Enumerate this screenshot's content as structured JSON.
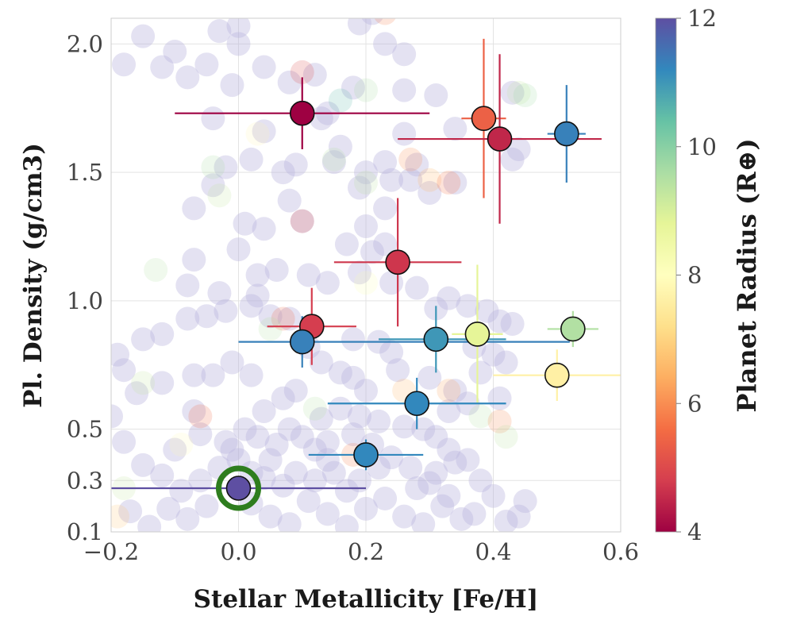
{
  "chart_data": {
    "type": "scatter",
    "xlabel": "Stellar Metallicity [Fe/H]",
    "ylabel": "Pl. Density (g/cm3)",
    "colorbar_label": "Planet Radius (R⊕)",
    "xlim": [
      -0.2,
      0.6
    ],
    "ylim": [
      0.1,
      2.1
    ],
    "x_ticks": [
      "−0.2",
      "0.0",
      "0.2",
      "0.4",
      "0.6"
    ],
    "y_ticks": [
      "0.1",
      "0.3",
      "0.5",
      "1.0",
      "1.5",
      "2.0"
    ],
    "colorbar_range": [
      4,
      12
    ],
    "colorbar_ticks": [
      "4",
      "6",
      "8",
      "10",
      "12"
    ],
    "colormap": [
      "#9e0142",
      "#d53e4f",
      "#f46d43",
      "#fdae61",
      "#fee08b",
      "#ffffbf",
      "#e6f598",
      "#abdda4",
      "#66c2a5",
      "#3288bd",
      "#5e4fa2"
    ],
    "grid": true,
    "highlighted_point": {
      "x": 0.0,
      "y": 0.27,
      "radius": 12,
      "ring_color": "#2e7d1e"
    },
    "points": [
      {
        "x": 0.1,
        "y": 1.73,
        "xerr": [
          0.2,
          0.2
        ],
        "yerr": [
          0.14,
          0.14
        ],
        "radius": 4.0
      },
      {
        "x": 0.385,
        "y": 1.71,
        "xerr": [
          0.035,
          0.035
        ],
        "yerr": [
          0.31,
          0.31
        ],
        "radius": 5.4
      },
      {
        "x": 0.41,
        "y": 1.63,
        "xerr": [
          0.16,
          0.16
        ],
        "yerr": [
          0.33,
          0.33
        ],
        "radius": 4.5
      },
      {
        "x": 0.515,
        "y": 1.65,
        "xerr": [
          0.03,
          0.03
        ],
        "yerr": [
          0.19,
          0.19
        ],
        "radius": 11.3
      },
      {
        "x": 0.25,
        "y": 1.15,
        "xerr": [
          0.1,
          0.1
        ],
        "yerr": [
          0.25,
          0.25
        ],
        "radius": 4.7
      },
      {
        "x": 0.115,
        "y": 0.9,
        "xerr": [
          0.07,
          0.07
        ],
        "yerr": [
          0.15,
          0.15
        ],
        "radius": 4.8
      },
      {
        "x": 0.1,
        "y": 0.84,
        "xerr": [
          0.1,
          0.42
        ],
        "yerr": [
          0.1,
          0.1
        ],
        "radius": 11.3
      },
      {
        "x": 0.31,
        "y": 0.85,
        "xerr": [
          0.09,
          0.11
        ],
        "yerr": [
          0.13,
          0.13
        ],
        "radius": 11.0
      },
      {
        "x": 0.375,
        "y": 0.87,
        "xerr": [
          0.04,
          0.04
        ],
        "yerr": [
          0.27,
          0.27
        ],
        "radius": 8.8
      },
      {
        "x": 0.525,
        "y": 0.89,
        "xerr": [
          0.04,
          0.04
        ],
        "yerr": [
          0.07,
          0.07
        ],
        "radius": 9.5
      },
      {
        "x": 0.5,
        "y": 0.71,
        "xerr": [
          0.1,
          0.1
        ],
        "yerr": [
          0.1,
          0.1
        ],
        "radius": 7.6
      },
      {
        "x": 0.28,
        "y": 0.6,
        "xerr": [
          0.14,
          0.14
        ],
        "yerr": [
          0.1,
          0.1
        ],
        "radius": 11.2
      },
      {
        "x": 0.2,
        "y": 0.4,
        "xerr": [
          0.09,
          0.09
        ],
        "yerr": [
          0.06,
          0.06
        ],
        "radius": 11.2
      },
      {
        "x": 0.0,
        "y": 0.27,
        "xerr": [
          0.2,
          0.2
        ],
        "yerr": [
          0.02,
          0.02
        ],
        "radius": 12.0
      }
    ],
    "background_points": [
      [
        -0.18,
        1.92
      ],
      [
        -0.15,
        2.03
      ],
      [
        -0.12,
        1.91
      ],
      [
        -0.1,
        1.97
      ],
      [
        -0.08,
        1.87
      ],
      [
        -0.05,
        1.92
      ],
      [
        -0.03,
        2.05
      ],
      [
        0.0,
        2.0
      ],
      [
        0.0,
        2.07
      ],
      [
        -0.01,
        1.84
      ],
      [
        0.04,
        1.91
      ],
      [
        0.08,
        1.85
      ],
      [
        0.12,
        1.88
      ],
      [
        0.19,
        2.08
      ],
      [
        0.21,
        2.12
      ],
      [
        0.23,
        2.0
      ],
      [
        0.18,
        1.83
      ],
      [
        0.14,
        1.73
      ],
      [
        0.13,
        1.71
      ],
      [
        0.26,
        1.82
      ],
      [
        0.31,
        1.8
      ],
      [
        0.26,
        1.65
      ],
      [
        0.34,
        1.67
      ],
      [
        0.43,
        1.81
      ],
      [
        0.43,
        1.55
      ],
      [
        0.44,
        1.59
      ],
      [
        0.26,
        1.96
      ],
      [
        -0.04,
        1.71
      ],
      [
        0.04,
        1.66
      ],
      [
        0.02,
        1.55
      ],
      [
        -0.02,
        1.52
      ],
      [
        -0.04,
        1.45
      ],
      [
        0.07,
        1.5
      ],
      [
        0.09,
        1.53
      ],
      [
        0.15,
        1.54
      ],
      [
        0.16,
        1.6
      ],
      [
        0.2,
        1.5
      ],
      [
        0.23,
        1.54
      ],
      [
        0.19,
        1.44
      ],
      [
        0.23,
        1.36
      ],
      [
        0.2,
        1.29
      ],
      [
        0.24,
        1.47
      ],
      [
        0.27,
        1.47
      ],
      [
        0.34,
        1.46
      ],
      [
        0.3,
        1.42
      ],
      [
        0.28,
        1.53
      ],
      [
        0.17,
        1.22
      ],
      [
        0.21,
        1.19
      ],
      [
        0.23,
        1.22
      ],
      [
        0.1,
        1.31
      ],
      [
        0.08,
        1.39
      ],
      [
        0.04,
        1.28
      ],
      [
        0.01,
        1.3
      ],
      [
        0.0,
        1.2
      ],
      [
        -0.07,
        1.36
      ],
      [
        -0.07,
        1.16
      ],
      [
        -0.08,
        1.06
      ],
      [
        -0.03,
        1.03
      ],
      [
        0.03,
        1.02
      ],
      [
        0.03,
        1.1
      ],
      [
        0.06,
        1.12
      ],
      [
        0.11,
        1.1
      ],
      [
        0.14,
        1.07
      ],
      [
        0.19,
        1.11
      ],
      [
        0.24,
        1.07
      ],
      [
        0.28,
        1.05
      ],
      [
        0.31,
        0.97
      ],
      [
        0.33,
        1.01
      ],
      [
        0.36,
        0.98
      ],
      [
        0.39,
        0.96
      ],
      [
        0.37,
        0.82
      ],
      [
        0.38,
        0.72
      ],
      [
        0.4,
        0.79
      ],
      [
        0.41,
        0.92
      ],
      [
        0.43,
        0.91
      ],
      [
        0.42,
        0.76
      ],
      [
        0.41,
        0.62
      ],
      [
        0.36,
        0.6
      ],
      [
        0.33,
        0.57
      ],
      [
        0.34,
        0.65
      ],
      [
        0.3,
        0.7
      ],
      [
        0.25,
        0.73
      ],
      [
        0.24,
        0.8
      ],
      [
        0.22,
        0.84
      ],
      [
        0.18,
        0.85
      ],
      [
        0.2,
        0.65
      ],
      [
        0.18,
        0.7
      ],
      [
        0.16,
        0.72
      ],
      [
        0.13,
        0.76
      ],
      [
        0.11,
        0.82
      ],
      [
        0.08,
        0.93
      ],
      [
        0.05,
        0.94
      ],
      [
        0.02,
        0.98
      ],
      [
        -0.02,
        0.96
      ],
      [
        -0.05,
        0.94
      ],
      [
        -0.08,
        0.93
      ],
      [
        -0.12,
        0.87
      ],
      [
        -0.15,
        0.85
      ],
      [
        -0.18,
        0.73
      ],
      [
        -0.16,
        0.64
      ],
      [
        -0.12,
        0.68
      ],
      [
        -0.07,
        0.57
      ],
      [
        -0.07,
        0.71
      ],
      [
        -0.04,
        0.71
      ],
      [
        -0.01,
        0.76
      ],
      [
        0.02,
        0.71
      ],
      [
        0.04,
        0.57
      ],
      [
        0.07,
        0.62
      ],
      [
        0.09,
        0.65
      ],
      [
        0.13,
        0.54
      ],
      [
        0.16,
        0.58
      ],
      [
        0.19,
        0.55
      ],
      [
        0.22,
        0.53
      ],
      [
        0.26,
        0.51
      ],
      [
        0.29,
        0.5
      ],
      [
        0.31,
        0.47
      ],
      [
        0.33,
        0.42
      ],
      [
        0.36,
        0.38
      ],
      [
        0.38,
        0.3
      ],
      [
        0.4,
        0.24
      ],
      [
        0.44,
        0.16
      ],
      [
        0.37,
        0.17
      ],
      [
        0.33,
        0.24
      ],
      [
        0.3,
        0.29
      ],
      [
        0.27,
        0.35
      ],
      [
        0.24,
        0.39
      ],
      [
        0.22,
        0.35
      ],
      [
        0.19,
        0.3
      ],
      [
        0.17,
        0.26
      ],
      [
        0.15,
        0.33
      ],
      [
        0.14,
        0.38
      ],
      [
        0.12,
        0.42
      ],
      [
        0.1,
        0.47
      ],
      [
        0.08,
        0.5
      ],
      [
        0.06,
        0.44
      ],
      [
        0.05,
        0.38
      ],
      [
        0.03,
        0.47
      ],
      [
        0.01,
        0.5
      ],
      [
        -0.01,
        0.42
      ],
      [
        -0.03,
        0.35
      ],
      [
        -0.06,
        0.3
      ],
      [
        -0.09,
        0.26
      ],
      [
        -0.12,
        0.32
      ],
      [
        -0.15,
        0.36
      ],
      [
        -0.18,
        0.45
      ],
      [
        -0.2,
        0.55
      ],
      [
        -0.19,
        0.79
      ],
      [
        -0.17,
        0.18
      ],
      [
        -0.14,
        0.12
      ],
      [
        -0.11,
        0.19
      ],
      [
        -0.08,
        0.15
      ],
      [
        -0.05,
        0.2
      ],
      [
        0.02,
        0.21
      ],
      [
        0.05,
        0.16
      ],
      [
        0.08,
        0.13
      ],
      [
        0.11,
        0.22
      ],
      [
        0.14,
        0.17
      ],
      [
        0.17,
        0.12
      ],
      [
        0.2,
        0.19
      ],
      [
        0.23,
        0.23
      ],
      [
        0.26,
        0.16
      ],
      [
        0.29,
        0.13
      ],
      [
        0.32,
        0.2
      ],
      [
        0.35,
        0.15
      ],
      [
        0.42,
        0.14
      ],
      [
        0.45,
        0.22
      ],
      [
        0.12,
        0.3
      ],
      [
        0.09,
        0.33
      ],
      [
        0.07,
        0.28
      ],
      [
        0.04,
        0.31
      ],
      [
        0.02,
        0.33
      ],
      [
        0.0,
        0.38
      ],
      [
        -0.02,
        0.45
      ],
      [
        0.14,
        0.45
      ],
      [
        0.18,
        0.48
      ],
      [
        0.21,
        0.44
      ],
      [
        0.28,
        0.27
      ],
      [
        0.31,
        0.33
      ],
      [
        0.34,
        0.37
      ],
      [
        -0.06,
        0.48
      ],
      [
        -0.1,
        0.42
      ]
    ],
    "colored_background_points": [
      {
        "x": -0.13,
        "y": 1.12,
        "radius": 9.5
      },
      {
        "x": -0.04,
        "y": 1.52,
        "radius": 9.6
      },
      {
        "x": -0.03,
        "y": 1.41,
        "radius": 9.3
      },
      {
        "x": 0.03,
        "y": 1.65,
        "radius": 7.8
      },
      {
        "x": 0.1,
        "y": 1.89,
        "radius": 5.0
      },
      {
        "x": 0.1,
        "y": 1.31,
        "radius": 5.2
      },
      {
        "x": 0.16,
        "y": 1.78,
        "radius": 10.5
      },
      {
        "x": 0.2,
        "y": 1.82,
        "radius": 9.6
      },
      {
        "x": 0.2,
        "y": 1.46,
        "radius": 9.4
      },
      {
        "x": 0.27,
        "y": 1.55,
        "radius": 6.0
      },
      {
        "x": 0.3,
        "y": 1.47,
        "radius": 6.5
      },
      {
        "x": 0.33,
        "y": 1.46,
        "radius": 5.6
      },
      {
        "x": 0.44,
        "y": 1.81,
        "radius": 9.3
      },
      {
        "x": 0.45,
        "y": 1.8,
        "radius": 9.7
      },
      {
        "x": 0.15,
        "y": 1.55,
        "radius": 9.5
      },
      {
        "x": 0.23,
        "y": 2.12,
        "radius": 5.8
      },
      {
        "x": 0.2,
        "y": 1.07,
        "radius": 8.2
      },
      {
        "x": 0.07,
        "y": 0.93,
        "radius": 5.5
      },
      {
        "x": 0.05,
        "y": 0.89,
        "radius": 9.5
      },
      {
        "x": -0.06,
        "y": 0.55,
        "radius": 5.5
      },
      {
        "x": -0.09,
        "y": 0.44,
        "radius": 7.9
      },
      {
        "x": -0.19,
        "y": 0.16,
        "radius": 6.8
      },
      {
        "x": -0.18,
        "y": 0.27,
        "radius": 9.3
      },
      {
        "x": 0.18,
        "y": 0.4,
        "radius": 5.8
      },
      {
        "x": 0.26,
        "y": 0.65,
        "radius": 6.5
      },
      {
        "x": 0.33,
        "y": 0.65,
        "radius": 6.2
      },
      {
        "x": 0.38,
        "y": 0.55,
        "radius": 9.5
      },
      {
        "x": 0.41,
        "y": 0.53,
        "radius": 5.9
      },
      {
        "x": 0.42,
        "y": 0.47,
        "radius": 9.4
      },
      {
        "x": 0.12,
        "y": 0.58,
        "radius": 9.5
      },
      {
        "x": -0.15,
        "y": 0.68,
        "radius": 9.3
      }
    ]
  }
}
